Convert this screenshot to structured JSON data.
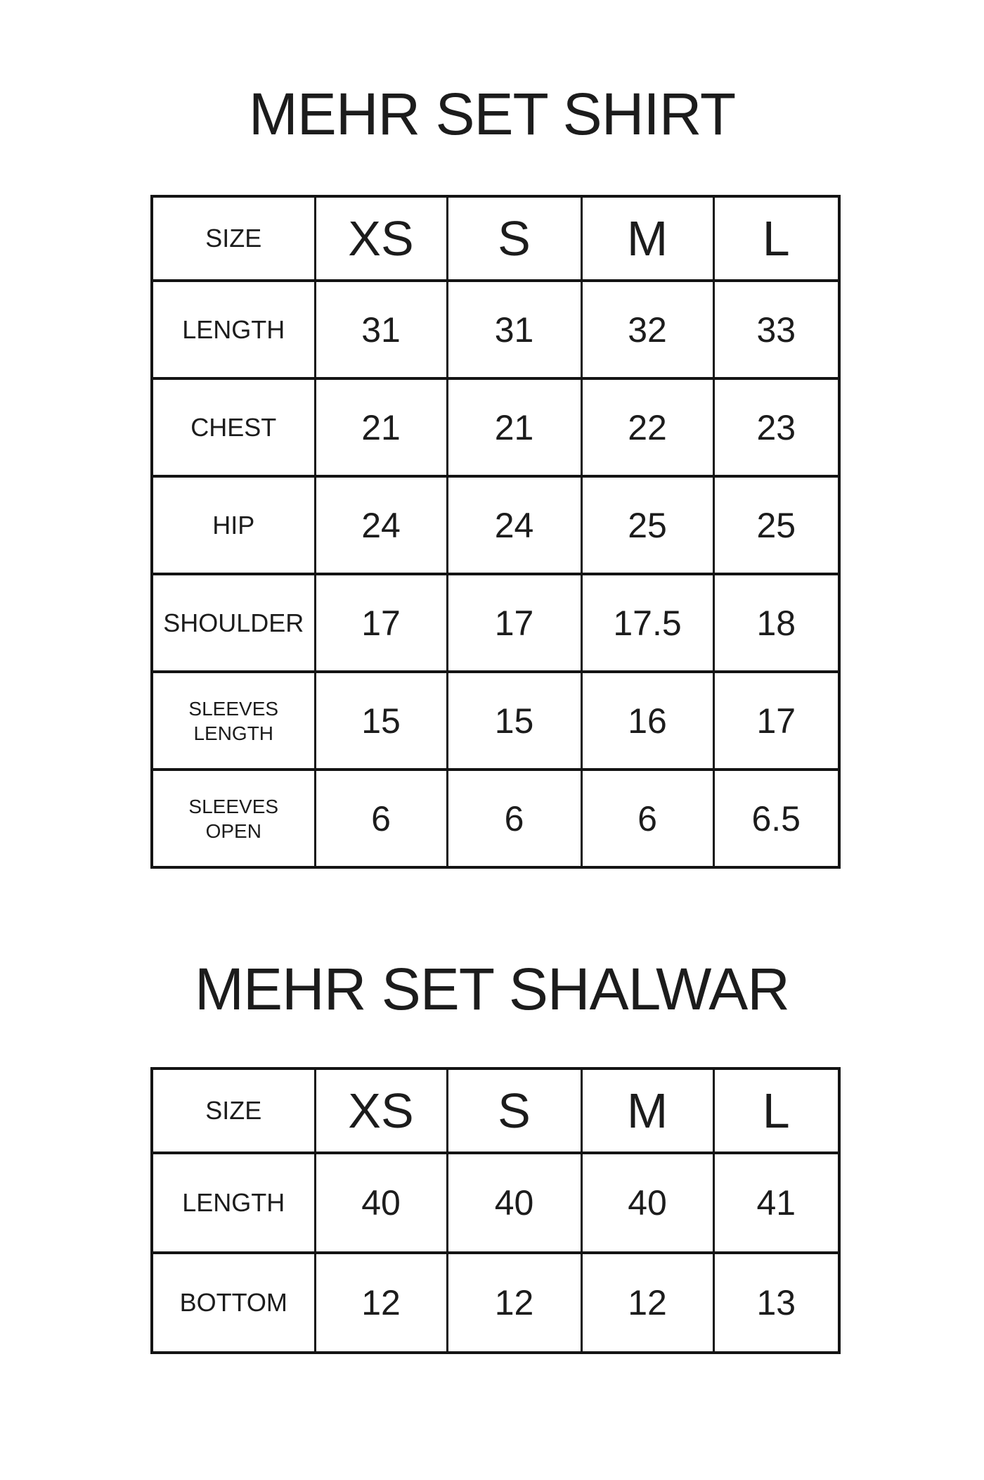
{
  "colors": {
    "background": "#ffffff",
    "text": "#1c1c1c",
    "table_border": "#141414"
  },
  "shirt_table": {
    "title": "MEHR SET SHIRT",
    "header_label": "SIZE",
    "sizes": [
      "XS",
      "S",
      "M",
      "L"
    ],
    "rows": [
      {
        "label": "LENGTH",
        "values": [
          "31",
          "31",
          "32",
          "33"
        ]
      },
      {
        "label": "CHEST",
        "values": [
          "21",
          "21",
          "22",
          "23"
        ]
      },
      {
        "label": "HIP",
        "values": [
          "24",
          "24",
          "25",
          "25"
        ]
      },
      {
        "label": "SHOULDER",
        "values": [
          "17",
          "17",
          "17.5",
          "18"
        ]
      },
      {
        "label": "SLEEVES\nLENGTH",
        "values": [
          "15",
          "15",
          "16",
          "17"
        ]
      },
      {
        "label": "SLEEVES\nOPEN",
        "values": [
          "6",
          "6",
          "6",
          "6.5"
        ]
      }
    ]
  },
  "shalwar_table": {
    "title": "MEHR SET SHALWAR",
    "header_label": "SIZE",
    "sizes": [
      "XS",
      "S",
      "M",
      "L"
    ],
    "rows": [
      {
        "label": "LENGTH",
        "values": [
          "40",
          "40",
          "40",
          "41"
        ]
      },
      {
        "label": "BOTTOM",
        "values": [
          "12",
          "12",
          "12",
          "13"
        ]
      }
    ]
  }
}
